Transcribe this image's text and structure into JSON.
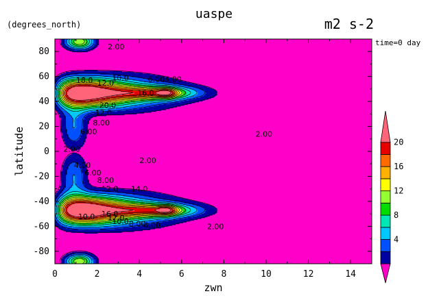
{
  "chart_data": {
    "type": "heatmap",
    "title": "uaspe",
    "units": "m2 s-2",
    "y_units": "(degrees_north)",
    "time_label": "time=0 day",
    "xlabel": "zwn",
    "ylabel": "latitude",
    "xlim": [
      0,
      15
    ],
    "ylim": [
      -90,
      90
    ],
    "x_ticks": [
      "0",
      "2",
      "4",
      "6",
      "8",
      "10",
      "12",
      "14"
    ],
    "y_ticks": [
      "-80",
      "-60",
      "-40",
      "-20",
      "0",
      "20",
      "40",
      "60",
      "80"
    ],
    "colorbar_ticks": [
      "4",
      "8",
      "12",
      "16",
      "20"
    ],
    "colorbar_colors": [
      "#0000a0",
      "#0050ff",
      "#00c8ff",
      "#00e6b4",
      "#00dc00",
      "#96ff32",
      "#ffff00",
      "#ffb000",
      "#ff6a00",
      "#e60000",
      "#ff6478"
    ],
    "background_color": "#ff00c8",
    "contour_levels": [
      2,
      4,
      6,
      8,
      10,
      12,
      14,
      16,
      18,
      20,
      22
    ],
    "contour_labels": [
      {
        "text": "2.00",
        "x": 9.9,
        "y": 14
      },
      {
        "text": "2.00",
        "x": 4.4,
        "y": -7
      },
      {
        "text": "2.00",
        "x": 7.6,
        "y": -60
      },
      {
        "text": "2.00",
        "x": 2.9,
        "y": 84
      },
      {
        "text": "2.00",
        "x": 0.8,
        "y": 2
      },
      {
        "text": "4.00",
        "x": 5.6,
        "y": 58
      },
      {
        "text": "4.00",
        "x": 1.3,
        "y": -11
      },
      {
        "text": "4.00",
        "x": 4.6,
        "y": -59
      },
      {
        "text": "6.00",
        "x": 1.6,
        "y": 16
      },
      {
        "text": "6.00",
        "x": 1.8,
        "y": -17
      },
      {
        "text": "6.00",
        "x": 4.8,
        "y": 58
      },
      {
        "text": "8.00",
        "x": 2.2,
        "y": 23
      },
      {
        "text": "8.00",
        "x": 2.4,
        "y": -23
      },
      {
        "text": "8.00",
        "x": 3.9,
        "y": -58
      },
      {
        "text": "10.0",
        "x": 3.1,
        "y": 59
      },
      {
        "text": "10.0",
        "x": 1.5,
        "y": -52
      },
      {
        "text": "10.0",
        "x": 3.1,
        "y": -56
      },
      {
        "text": "12.0",
        "x": 2.3,
        "y": 31
      },
      {
        "text": "12.0",
        "x": 2.4,
        "y": 55
      },
      {
        "text": "12.0",
        "x": 2.6,
        "y": -30
      },
      {
        "text": "12.0",
        "x": 2.9,
        "y": -53
      },
      {
        "text": "14.0",
        "x": 4.0,
        "y": -30
      },
      {
        "text": "16.0",
        "x": 4.3,
        "y": 47
      },
      {
        "text": "16.0",
        "x": 2.6,
        "y": -50
      },
      {
        "text": "20.0",
        "x": 2.5,
        "y": 37
      },
      {
        "text": "18.0",
        "x": 1.4,
        "y": 57
      }
    ]
  }
}
